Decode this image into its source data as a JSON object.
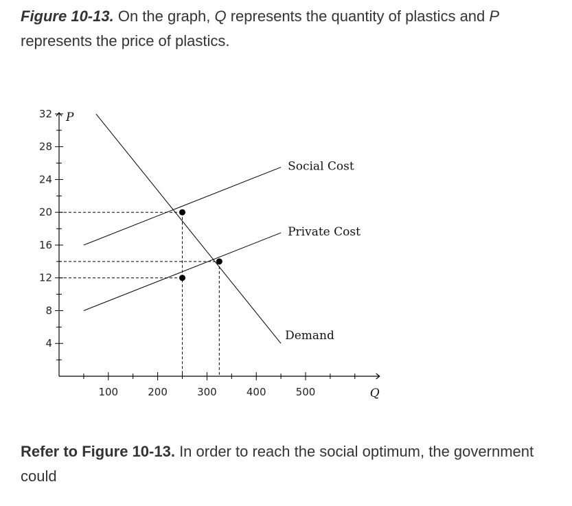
{
  "caption": {
    "figure_label": "Figure 10-13.",
    "text_before_q": " On the graph, ",
    "q_var": "Q",
    "text_middle": " represents the quantity of plastics and ",
    "p_var": "P",
    "text_after_p": " represents the price of plastics."
  },
  "question": {
    "ref": "Refer to Figure 10-13.",
    "text": " In order to reach the social optimum, the government could"
  },
  "chart_data": {
    "type": "line",
    "xlabel": "Q",
    "ylabel": "P",
    "xlim": [
      0,
      650
    ],
    "ylim": [
      0,
      34
    ],
    "x_ticks": [
      100,
      200,
      300,
      400,
      500
    ],
    "y_ticks": [
      4,
      8,
      12,
      16,
      20,
      24,
      28,
      32
    ],
    "grid": false,
    "series": [
      {
        "name": "Social Cost",
        "x": [
          50,
          450
        ],
        "y": [
          16,
          25.5
        ]
      },
      {
        "name": "Private Cost",
        "x": [
          50,
          450
        ],
        "y": [
          8,
          17.5
        ]
      },
      {
        "name": "Demand",
        "x": [
          75,
          450
        ],
        "y": [
          32,
          4
        ]
      }
    ],
    "points": [
      {
        "x": 250,
        "y": 20
      },
      {
        "x": 325,
        "y": 14
      },
      {
        "x": 250,
        "y": 12
      }
    ],
    "guides": [
      {
        "from": [
          0,
          20
        ],
        "to": [
          250,
          20
        ]
      },
      {
        "from": [
          250,
          20
        ],
        "to": [
          250,
          0
        ]
      },
      {
        "from": [
          0,
          14
        ],
        "to": [
          325,
          14
        ]
      },
      {
        "from": [
          325,
          14
        ],
        "to": [
          325,
          0
        ]
      },
      {
        "from": [
          0,
          12
        ],
        "to": [
          250,
          12
        ]
      }
    ]
  }
}
